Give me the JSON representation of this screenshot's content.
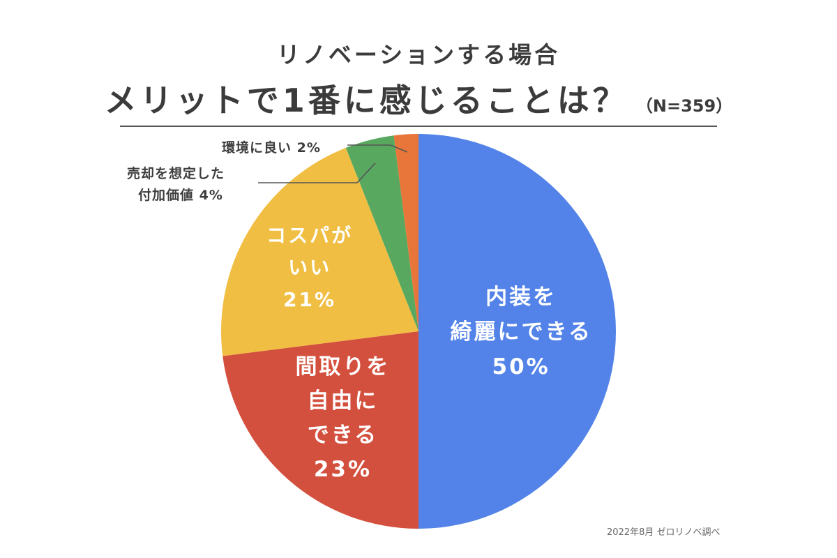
{
  "header": {
    "subtitle": "リノベーションする場合",
    "title": "メリットで1番に感じることは？",
    "sample": "（N=359）"
  },
  "source_note": "2022年8月 ゼロリノベ調べ",
  "chart_data": {
    "type": "pie",
    "title": "メリットで1番に感じることは？",
    "subtitle": "リノベーションする場合",
    "sample_size": "N=359",
    "start_angle": "12 o'clock",
    "direction": "clockwise",
    "slices": [
      {
        "label": "内装を綺麗にできる",
        "value": 50,
        "display_lines": [
          "内装を",
          "綺麗にできる",
          "50%"
        ],
        "color": "#5383e8"
      },
      {
        "label": "間取りを自由にできる",
        "value": 23,
        "display_lines": [
          "間取りを",
          "自由に",
          "できる",
          "23%"
        ],
        "color": "#d4503e"
      },
      {
        "label": "コスパがいい",
        "value": 21,
        "display_lines": [
          "コスパが",
          "いい",
          "21%"
        ],
        "color": "#f0be43"
      },
      {
        "label": "売却を想定した付加価値",
        "value": 4,
        "display_lines": [
          "売却を想定した",
          "付加価値 4%"
        ],
        "color": "#58a95f"
      },
      {
        "label": "環境に良い",
        "value": 2,
        "display_lines": [
          "環境に良い 2%"
        ],
        "color": "#e8763a"
      }
    ]
  }
}
